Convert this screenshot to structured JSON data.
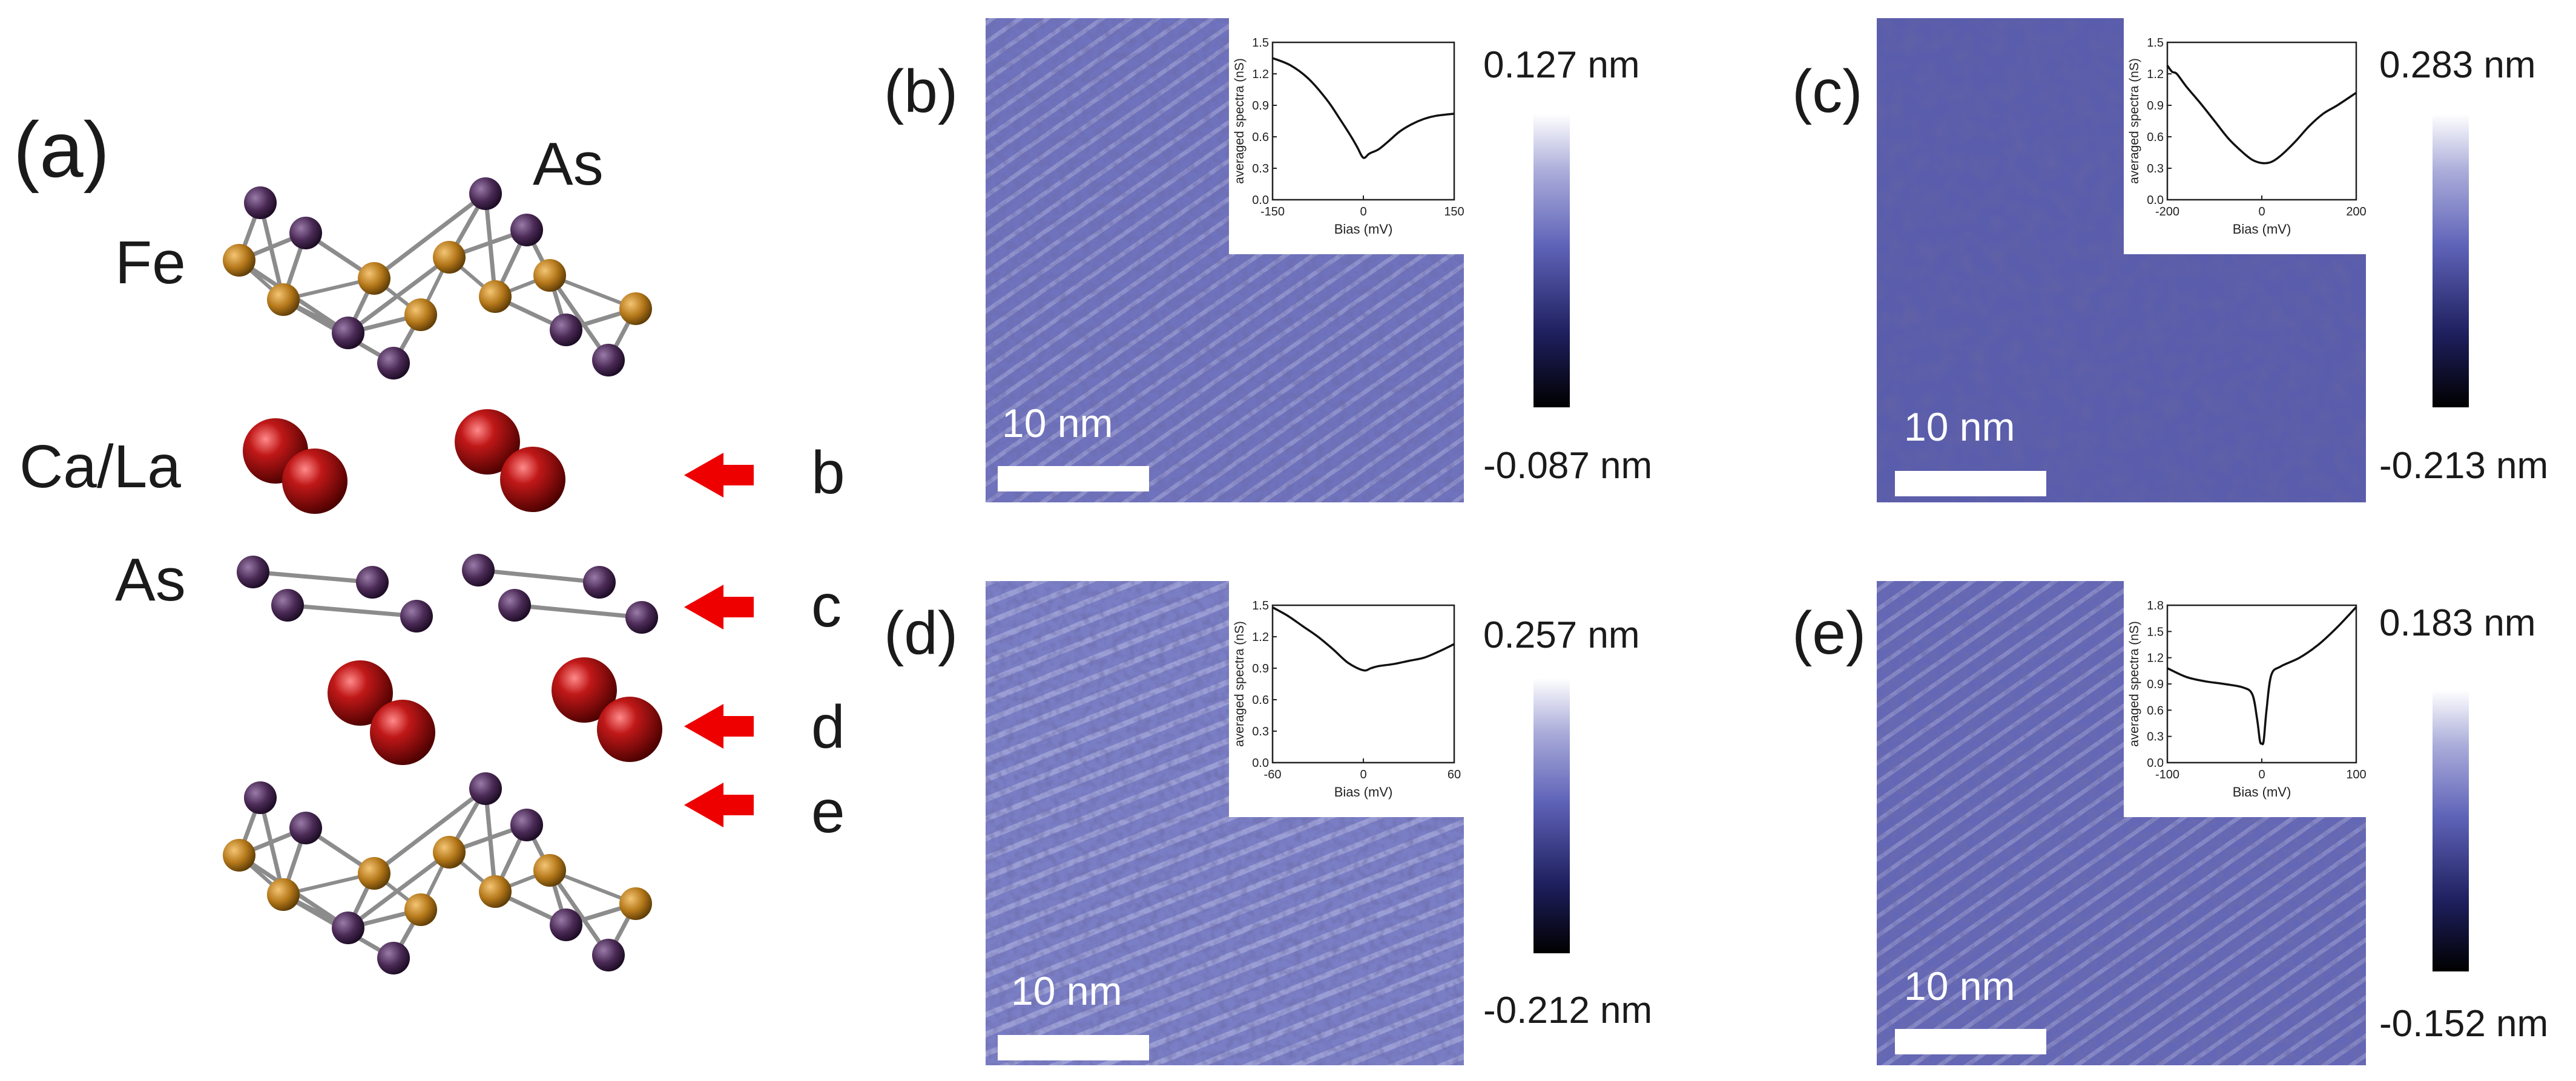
{
  "panel_a": {
    "label": "(a)",
    "atoms": {
      "fe": "Fe",
      "as_top": "As",
      "ca_la": "Ca/La",
      "as_mid": "As"
    },
    "arrows": [
      "b",
      "c",
      "d",
      "e"
    ],
    "colors": {
      "fe": "#b5781a",
      "as": "#4a2a55",
      "ca": "#8a0d0d",
      "arrow": "#ee0000",
      "bond": "#8c8c8c"
    }
  },
  "panels": [
    {
      "id": "b",
      "label": "(b)",
      "scale_bar": "10 nm",
      "cbar_max": "0.127 nm",
      "cbar_min": "-0.087 nm",
      "inset_ylabel": "averaged spectra (nS)",
      "inset_xlabel": "Bias (mV)"
    },
    {
      "id": "c",
      "label": "(c)",
      "scale_bar": "10 nm",
      "cbar_max": "0.283 nm",
      "cbar_min": "-0.213 nm",
      "inset_ylabel": "averaged spectra (nS)",
      "inset_xlabel": "Bias (mV)"
    },
    {
      "id": "d",
      "label": "(d)",
      "scale_bar": "10 nm",
      "cbar_max": "0.257 nm",
      "cbar_min": "-0.212 nm",
      "inset_ylabel": "averaged spectra (nS)",
      "inset_xlabel": "Bias (mV)"
    },
    {
      "id": "e",
      "label": "(e)",
      "scale_bar": "10 nm",
      "cbar_max": "0.183 nm",
      "cbar_min": "-0.152 nm",
      "inset_ylabel": "averaged spectra (nS)",
      "inset_xlabel": "Bias (mV)"
    }
  ],
  "chart_data": [
    {
      "type": "line",
      "panel": "b",
      "xlabel": "Bias (mV)",
      "ylabel": "averaged spectra (nS)",
      "xlim": [
        -150,
        150
      ],
      "ylim": [
        0,
        1.5
      ],
      "xticks": [
        "-150",
        "0",
        "150"
      ],
      "yticks": [
        "0.0",
        "0.3",
        "0.6",
        "0.9",
        "1.2",
        "1.5"
      ],
      "x": [
        -150,
        -120,
        -90,
        -60,
        -40,
        -20,
        -10,
        0,
        10,
        25,
        40,
        60,
        80,
        100,
        120,
        150
      ],
      "y": [
        1.35,
        1.28,
        1.15,
        0.95,
        0.78,
        0.6,
        0.5,
        0.4,
        0.44,
        0.48,
        0.55,
        0.65,
        0.72,
        0.77,
        0.8,
        0.82
      ]
    },
    {
      "type": "line",
      "panel": "c",
      "xlabel": "Bias (mV)",
      "ylabel": "averaged spectra (nS)",
      "xlim": [
        -200,
        200
      ],
      "ylim": [
        0,
        1.5
      ],
      "xticks": [
        "-200",
        "0",
        "200"
      ],
      "yticks": [
        "0.0",
        "0.3",
        "0.6",
        "0.9",
        "1.2",
        "1.5"
      ],
      "x": [
        -200,
        -190,
        -180,
        -160,
        -130,
        -100,
        -70,
        -40,
        -20,
        0,
        20,
        40,
        70,
        100,
        130,
        160,
        200
      ],
      "y": [
        1.28,
        1.22,
        1.2,
        1.08,
        0.92,
        0.75,
        0.58,
        0.45,
        0.38,
        0.35,
        0.36,
        0.42,
        0.55,
        0.7,
        0.82,
        0.9,
        1.02
      ]
    },
    {
      "type": "line",
      "panel": "d",
      "xlabel": "Bias (mV)",
      "ylabel": "averaged spectra (nS)",
      "xlim": [
        -60,
        60
      ],
      "ylim": [
        0,
        1.5
      ],
      "xticks": [
        "-60",
        "0",
        "60"
      ],
      "yticks": [
        "0.0",
        "0.3",
        "0.6",
        "0.9",
        "1.2",
        "1.5"
      ],
      "x": [
        -60,
        -50,
        -40,
        -30,
        -20,
        -10,
        0,
        5,
        10,
        20,
        30,
        40,
        50,
        60
      ],
      "y": [
        1.48,
        1.4,
        1.3,
        1.2,
        1.08,
        0.95,
        0.88,
        0.9,
        0.92,
        0.94,
        0.97,
        1.0,
        1.06,
        1.13
      ]
    },
    {
      "type": "line",
      "panel": "e",
      "xlabel": "Bias (mV)",
      "ylabel": "averaged spectra (nS)",
      "xlim": [
        -100,
        100
      ],
      "ylim": [
        0,
        1.8
      ],
      "xticks": [
        "-100",
        "0",
        "100"
      ],
      "yticks": [
        "0.0",
        "0.3",
        "0.6",
        "0.9",
        "1.2",
        "1.5",
        "1.8"
      ],
      "x": [
        -100,
        -80,
        -60,
        -40,
        -20,
        -10,
        -5,
        -2,
        0,
        2,
        5,
        10,
        20,
        40,
        60,
        80,
        100
      ],
      "y": [
        1.08,
        0.98,
        0.93,
        0.9,
        0.86,
        0.78,
        0.5,
        0.25,
        0.22,
        0.25,
        0.6,
        1.0,
        1.1,
        1.2,
        1.35,
        1.55,
        1.78
      ]
    }
  ]
}
